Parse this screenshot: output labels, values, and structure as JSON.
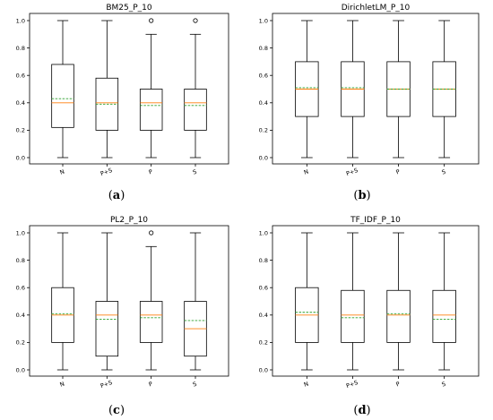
{
  "colors": {
    "median": "#ff7f0e",
    "mean": "#2ca02c",
    "box": "#000000"
  },
  "chart_data": [
    {
      "type": "box",
      "title": "BM25_P_10",
      "caption": "(a)",
      "categories": [
        "N",
        "P+S",
        "P",
        "S"
      ],
      "ylim": [
        0,
        1.0
      ],
      "yticks": [
        "0.0",
        "0.2",
        "0.4",
        "0.6",
        "0.8",
        "1.0"
      ],
      "boxes": [
        {
          "whislo": 0.0,
          "q1": 0.22,
          "med": 0.4,
          "mean": 0.43,
          "q3": 0.68,
          "whishi": 1.0,
          "fliers": []
        },
        {
          "whislo": 0.0,
          "q1": 0.2,
          "med": 0.4,
          "mean": 0.39,
          "q3": 0.58,
          "whishi": 1.0,
          "fliers": []
        },
        {
          "whislo": 0.0,
          "q1": 0.2,
          "med": 0.4,
          "mean": 0.38,
          "q3": 0.5,
          "whishi": 0.9,
          "fliers": [
            1.0
          ]
        },
        {
          "whislo": 0.0,
          "q1": 0.2,
          "med": 0.4,
          "mean": 0.38,
          "q3": 0.5,
          "whishi": 0.9,
          "fliers": [
            1.0
          ]
        }
      ]
    },
    {
      "type": "box",
      "title": "DirichletLM_P_10",
      "caption": "(b)",
      "categories": [
        "N",
        "P+S",
        "P",
        "S"
      ],
      "ylim": [
        0,
        1.0
      ],
      "yticks": [
        "0.0",
        "0.2",
        "0.4",
        "0.6",
        "0.8",
        "1.0"
      ],
      "boxes": [
        {
          "whislo": 0.0,
          "q1": 0.3,
          "med": 0.5,
          "mean": 0.51,
          "q3": 0.7,
          "whishi": 1.0,
          "fliers": []
        },
        {
          "whislo": 0.0,
          "q1": 0.3,
          "med": 0.5,
          "mean": 0.51,
          "q3": 0.7,
          "whishi": 1.0,
          "fliers": []
        },
        {
          "whislo": 0.0,
          "q1": 0.3,
          "med": 0.5,
          "mean": 0.5,
          "q3": 0.7,
          "whishi": 1.0,
          "fliers": []
        },
        {
          "whislo": 0.0,
          "q1": 0.3,
          "med": 0.5,
          "mean": 0.5,
          "q3": 0.7,
          "whishi": 1.0,
          "fliers": []
        }
      ]
    },
    {
      "type": "box",
      "title": "PL2_P_10",
      "caption": "(c)",
      "categories": [
        "N",
        "P+S",
        "P",
        "S"
      ],
      "ylim": [
        0,
        1.0
      ],
      "yticks": [
        "0.0",
        "0.2",
        "0.4",
        "0.6",
        "0.8",
        "1.0"
      ],
      "boxes": [
        {
          "whislo": 0.0,
          "q1": 0.2,
          "med": 0.4,
          "mean": 0.41,
          "q3": 0.6,
          "whishi": 1.0,
          "fliers": []
        },
        {
          "whislo": 0.0,
          "q1": 0.1,
          "med": 0.4,
          "mean": 0.37,
          "q3": 0.5,
          "whishi": 1.0,
          "fliers": []
        },
        {
          "whislo": 0.0,
          "q1": 0.2,
          "med": 0.4,
          "mean": 0.38,
          "q3": 0.5,
          "whishi": 0.9,
          "fliers": [
            1.0
          ]
        },
        {
          "whislo": 0.0,
          "q1": 0.1,
          "med": 0.3,
          "mean": 0.36,
          "q3": 0.5,
          "whishi": 1.0,
          "fliers": []
        }
      ]
    },
    {
      "type": "box",
      "title": "TF_IDF_P_10",
      "caption": "(d)",
      "categories": [
        "N",
        "P+S",
        "P",
        "S"
      ],
      "ylim": [
        0,
        1.0
      ],
      "yticks": [
        "0.0",
        "0.2",
        "0.4",
        "0.6",
        "0.8",
        "1.0"
      ],
      "boxes": [
        {
          "whislo": 0.0,
          "q1": 0.2,
          "med": 0.4,
          "mean": 0.42,
          "q3": 0.6,
          "whishi": 1.0,
          "fliers": []
        },
        {
          "whislo": 0.0,
          "q1": 0.2,
          "med": 0.4,
          "mean": 0.38,
          "q3": 0.58,
          "whishi": 1.0,
          "fliers": []
        },
        {
          "whislo": 0.0,
          "q1": 0.2,
          "med": 0.4,
          "mean": 0.41,
          "q3": 0.58,
          "whishi": 1.0,
          "fliers": []
        },
        {
          "whislo": 0.0,
          "q1": 0.2,
          "med": 0.4,
          "mean": 0.37,
          "q3": 0.58,
          "whishi": 1.0,
          "fliers": []
        }
      ]
    }
  ]
}
